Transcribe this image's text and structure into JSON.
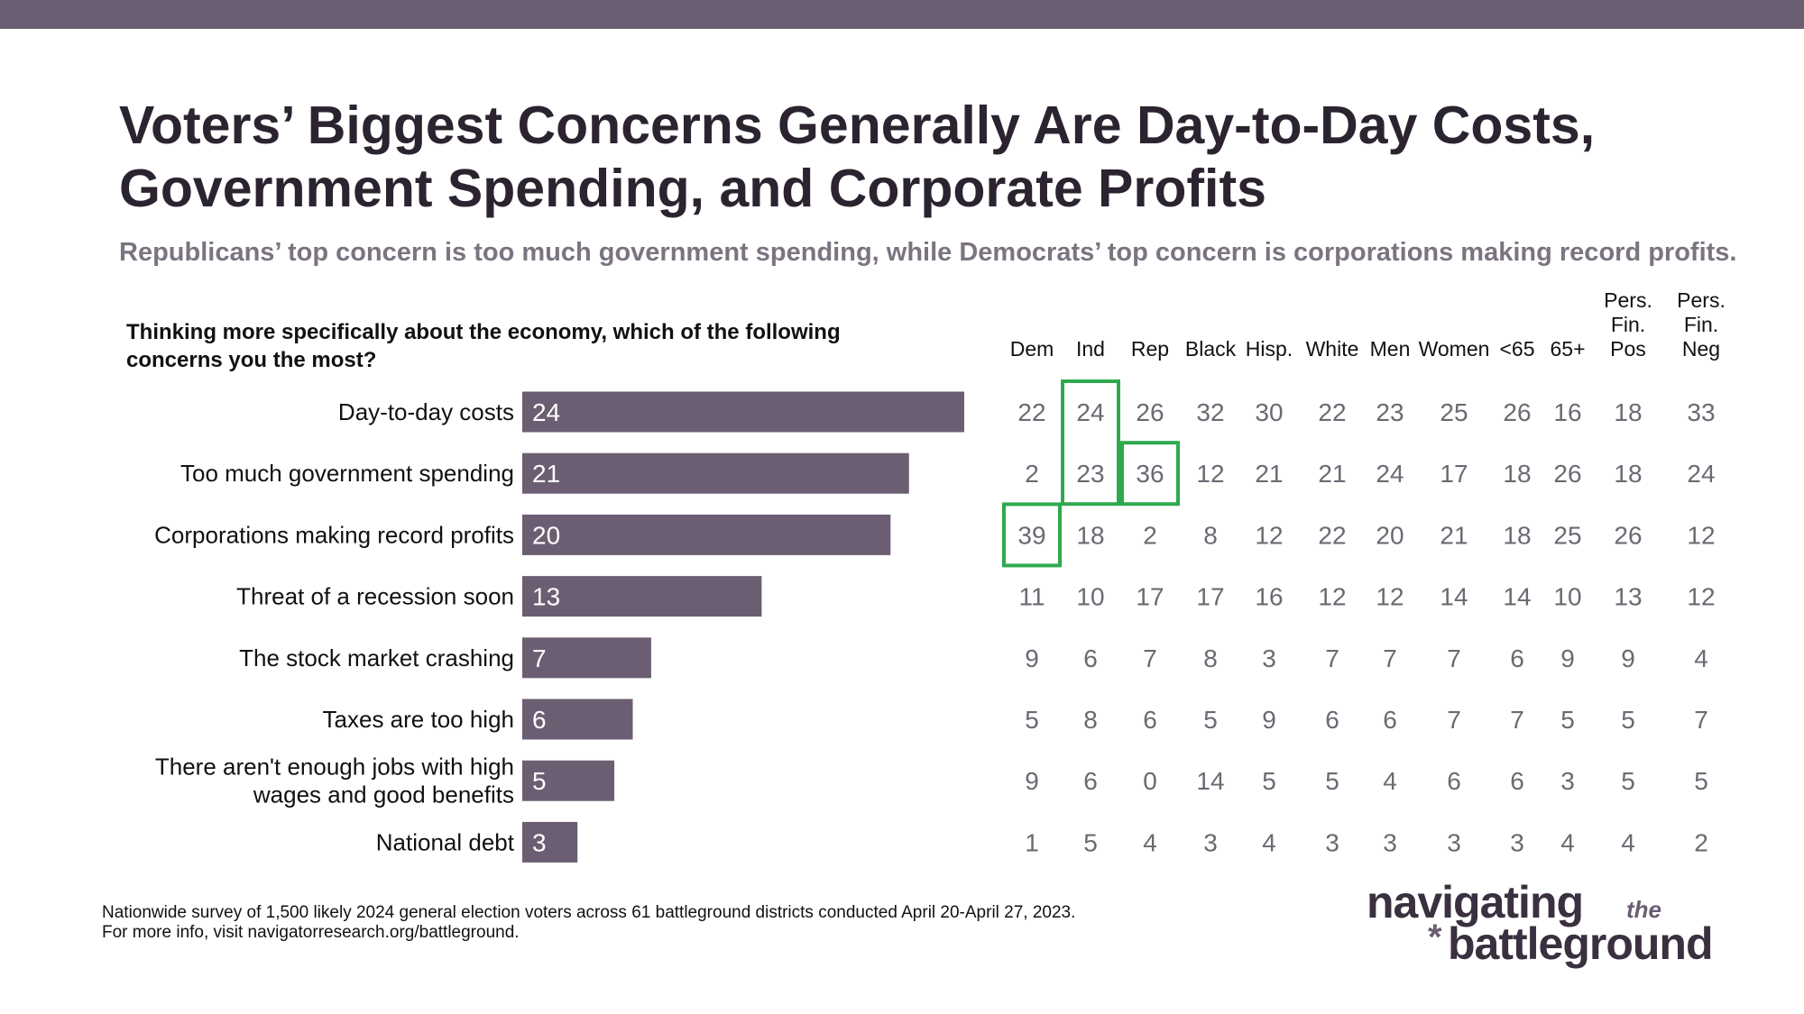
{
  "title_line1": "Voters’ Biggest Concerns Generally Are Day-to-Day Costs,",
  "title_line2": "Government Spending, and Corporate Profits",
  "subtitle": "Republicans’ top concern is too much government spending, while Democrats’ top concern is corporations making record profits.",
  "question": "Thinking more specifically about the economy, which of the following concerns you the most?",
  "colors": {
    "bar": "#6b5e72",
    "highlight": "#2eaa4e",
    "table_text": "#6e6873",
    "header_text": "#111111"
  },
  "chart_data": {
    "type": "bar",
    "orientation": "horizontal",
    "categories": [
      [
        "Day-to-day costs"
      ],
      [
        "Too much government spending"
      ],
      [
        "Corporations making record profits"
      ],
      [
        "Threat of a recession soon"
      ],
      [
        "The stock market crashing"
      ],
      [
        "Taxes are too high"
      ],
      [
        "There aren't enough jobs with high",
        "wages and good benefits"
      ],
      [
        "National debt"
      ]
    ],
    "values": [
      24,
      21,
      20,
      13,
      7,
      6,
      5,
      3
    ],
    "xlim": [
      0,
      24
    ],
    "grid": false
  },
  "crosstab": {
    "columns": [
      [
        "Dem"
      ],
      [
        "Ind"
      ],
      [
        "Rep"
      ],
      [
        "Black"
      ],
      [
        "Hisp."
      ],
      [
        "White"
      ],
      [
        "Men"
      ],
      [
        "Women"
      ],
      [
        "<65"
      ],
      [
        "65+"
      ],
      [
        "Pers.",
        "Fin.",
        "Pos"
      ],
      [
        "Pers.",
        "Fin.",
        "Neg"
      ]
    ],
    "rows": [
      [
        22,
        24,
        26,
        32,
        30,
        22,
        23,
        25,
        26,
        16,
        18,
        33
      ],
      [
        2,
        23,
        36,
        12,
        21,
        21,
        24,
        17,
        18,
        26,
        18,
        24
      ],
      [
        39,
        18,
        2,
        8,
        12,
        22,
        20,
        21,
        18,
        25,
        26,
        12
      ],
      [
        11,
        10,
        17,
        17,
        16,
        12,
        12,
        14,
        14,
        10,
        13,
        12
      ],
      [
        9,
        6,
        7,
        8,
        3,
        7,
        7,
        7,
        6,
        9,
        9,
        4
      ],
      [
        5,
        8,
        6,
        5,
        9,
        6,
        6,
        7,
        7,
        5,
        5,
        7
      ],
      [
        9,
        6,
        0,
        14,
        5,
        5,
        4,
        6,
        6,
        3,
        5,
        5
      ],
      [
        1,
        5,
        4,
        3,
        4,
        3,
        3,
        3,
        3,
        4,
        4,
        2
      ]
    ],
    "highlights": [
      {
        "col": 1,
        "row_start": 0,
        "row_end": 1
      },
      {
        "col": 2,
        "row_start": 1,
        "row_end": 1
      },
      {
        "col": 0,
        "row_start": 2,
        "row_end": 2
      }
    ]
  },
  "footnote_line1": "Nationwide survey of 1,500 likely 2024 general election voters across 61 battleground districts conducted April 20-April 27, 2023.",
  "footnote_line2": "For more info, visit navigatorresearch.org/battleground.",
  "logo": {
    "line1": "navigating",
    "the": "the",
    "star": "*",
    "line2": "battleground"
  }
}
